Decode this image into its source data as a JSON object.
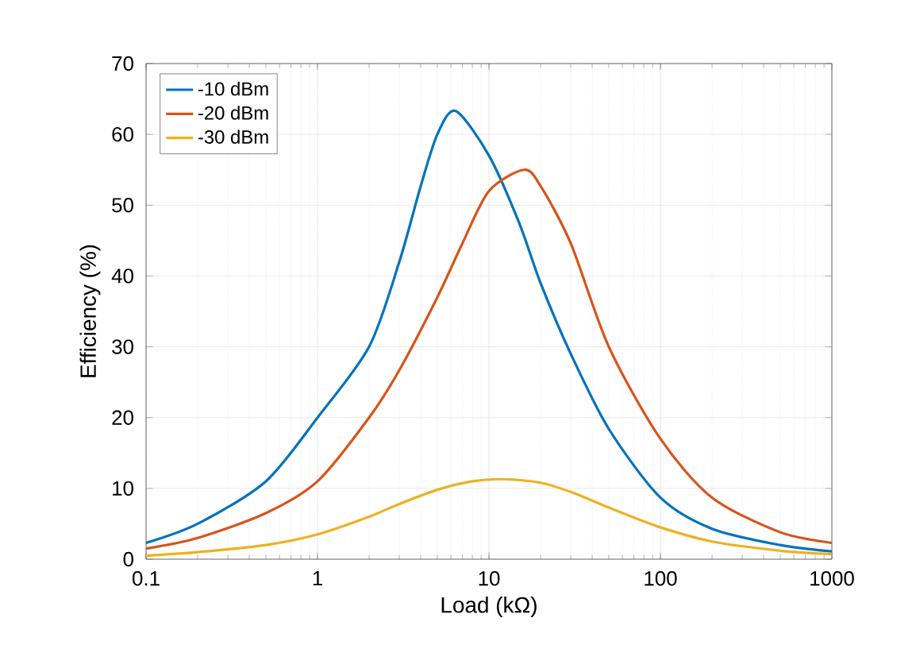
{
  "chart_data": {
    "type": "line",
    "xlabel": "Load (kΩ)",
    "ylabel": "Efficiency (%)",
    "log": "x",
    "grid": true,
    "legend": "top left",
    "line_style": "solid",
    "marker": "none",
    "xlim": [
      0.1,
      1000
    ],
    "ylim": [
      0,
      70
    ],
    "xticks": [
      0.1,
      1,
      10,
      100,
      1000
    ],
    "yticks": [
      0,
      10,
      20,
      30,
      40,
      50,
      60,
      70
    ],
    "series": [
      {
        "name": "-10 dBm",
        "color": "#0072bd",
        "x": [
          0.1,
          0.2,
          0.5,
          1,
          2,
          3,
          4,
          5,
          6.4,
          10,
          15,
          20,
          30,
          50,
          100,
          200,
          500,
          1000
        ],
        "values": [
          2.3,
          5,
          11,
          20,
          30,
          42,
          52.7,
          60,
          63.3,
          57,
          47.5,
          39,
          29,
          18.4,
          8.7,
          4.3,
          2,
          1.1
        ]
      },
      {
        "name": "-20 dBm",
        "color": "#d95319",
        "x": [
          0.1,
          0.2,
          0.5,
          1,
          2,
          3,
          5,
          7,
          10,
          16,
          20,
          30,
          50,
          100,
          200,
          500,
          1000
        ],
        "values": [
          1.5,
          3,
          6.5,
          11,
          20,
          26.7,
          37,
          44.6,
          52,
          55,
          52.7,
          44.6,
          30,
          17,
          8.7,
          3.8,
          2.3
        ]
      },
      {
        "name": "-30 dBm",
        "color": "#edb120",
        "x": [
          0.1,
          0.2,
          0.5,
          1,
          2,
          3,
          5,
          8,
          12,
          20,
          30,
          50,
          100,
          200,
          500,
          1000
        ],
        "values": [
          0.5,
          1,
          2,
          3.5,
          6,
          7.8,
          9.8,
          11,
          11.3,
          10.8,
          9.5,
          7.3,
          4.5,
          2.5,
          1.2,
          0.7
        ]
      }
    ]
  }
}
